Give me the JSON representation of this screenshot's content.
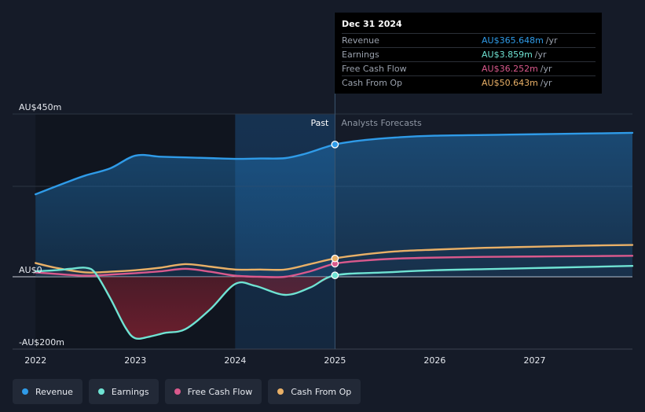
{
  "tooltip": {
    "date": "Dec 31 2024",
    "rows": [
      {
        "label": "Revenue",
        "value": "AU$365.648m",
        "unit": "/yr",
        "color": "#2f9be8"
      },
      {
        "label": "Earnings",
        "value": "AU$3.859m",
        "unit": "/yr",
        "color": "#6fe3d3"
      },
      {
        "label": "Free Cash Flow",
        "value": "AU$36.252m",
        "unit": "/yr",
        "color": "#d9598c"
      },
      {
        "label": "Cash From Op",
        "value": "AU$50.643m",
        "unit": "/yr",
        "color": "#e9b067"
      }
    ]
  },
  "legend": [
    {
      "label": "Revenue",
      "color": "#2f9be8"
    },
    {
      "label": "Earnings",
      "color": "#6fe3d3"
    },
    {
      "label": "Free Cash Flow",
      "color": "#d9598c"
    },
    {
      "label": "Cash From Op",
      "color": "#e9b067"
    }
  ],
  "chart_data": {
    "type": "line",
    "ytick_labels": [
      {
        "label": "AU$450m",
        "value": 450
      },
      {
        "label": "AU$0",
        "value": 0
      },
      {
        "label": "-AU$200m",
        "value": -200
      }
    ],
    "xtick_labels": [
      "2022",
      "2023",
      "2024",
      "2025",
      "2026",
      "2027"
    ],
    "ylim": [
      -200,
      450
    ],
    "xlim": [
      2021.77,
      2027.98
    ],
    "past_label": "Past",
    "forecast_label": "Analysts Forecasts",
    "split_x": 2025.0,
    "highlight_start_x": 2024.0,
    "hover_x": 2025.0,
    "series": [
      {
        "name": "Revenue",
        "color": "#2f9be8",
        "points": [
          [
            2022.0,
            228
          ],
          [
            2022.3,
            260
          ],
          [
            2022.5,
            280
          ],
          [
            2022.75,
            300
          ],
          [
            2023.0,
            335
          ],
          [
            2023.25,
            332
          ],
          [
            2023.5,
            330
          ],
          [
            2023.75,
            328
          ],
          [
            2024.0,
            326
          ],
          [
            2024.25,
            327
          ],
          [
            2024.5,
            328
          ],
          [
            2024.7,
            340
          ],
          [
            2025.0,
            365.648
          ],
          [
            2025.3,
            378
          ],
          [
            2025.6,
            385
          ],
          [
            2026.0,
            390
          ],
          [
            2026.5,
            392
          ],
          [
            2027.0,
            394
          ],
          [
            2027.5,
            396
          ],
          [
            2027.98,
            398
          ]
        ]
      },
      {
        "name": "Earnings",
        "color": "#6fe3d3",
        "points": [
          [
            2022.0,
            15
          ],
          [
            2022.2,
            18
          ],
          [
            2022.35,
            22
          ],
          [
            2022.5,
            25
          ],
          [
            2022.6,
            10
          ],
          [
            2022.75,
            -60
          ],
          [
            2022.9,
            -140
          ],
          [
            2023.0,
            -170
          ],
          [
            2023.15,
            -165
          ],
          [
            2023.3,
            -155
          ],
          [
            2023.5,
            -145
          ],
          [
            2023.75,
            -90
          ],
          [
            2024.0,
            -20
          ],
          [
            2024.2,
            -25
          ],
          [
            2024.5,
            -50
          ],
          [
            2024.75,
            -30
          ],
          [
            2025.0,
            3.859
          ],
          [
            2025.5,
            12
          ],
          [
            2026.0,
            18
          ],
          [
            2026.5,
            21
          ],
          [
            2027.0,
            24
          ],
          [
            2027.5,
            27
          ],
          [
            2027.98,
            30
          ]
        ]
      },
      {
        "name": "Free Cash Flow",
        "color": "#d9598c",
        "points": [
          [
            2022.0,
            12
          ],
          [
            2022.2,
            8
          ],
          [
            2022.5,
            3
          ],
          [
            2022.75,
            6
          ],
          [
            2023.0,
            10
          ],
          [
            2023.25,
            15
          ],
          [
            2023.5,
            22
          ],
          [
            2023.75,
            14
          ],
          [
            2024.0,
            3
          ],
          [
            2024.25,
            0
          ],
          [
            2024.5,
            0
          ],
          [
            2024.75,
            15
          ],
          [
            2025.0,
            36.252
          ],
          [
            2025.3,
            45
          ],
          [
            2025.6,
            50
          ],
          [
            2026.0,
            53
          ],
          [
            2026.5,
            55
          ],
          [
            2027.0,
            56
          ],
          [
            2027.5,
            57
          ],
          [
            2027.98,
            58
          ]
        ]
      },
      {
        "name": "Cash From Op",
        "color": "#e9b067",
        "points": [
          [
            2022.0,
            38
          ],
          [
            2022.2,
            25
          ],
          [
            2022.5,
            12
          ],
          [
            2022.75,
            14
          ],
          [
            2023.0,
            18
          ],
          [
            2023.25,
            25
          ],
          [
            2023.5,
            35
          ],
          [
            2023.75,
            28
          ],
          [
            2024.0,
            20
          ],
          [
            2024.25,
            20
          ],
          [
            2024.5,
            20
          ],
          [
            2024.75,
            35
          ],
          [
            2025.0,
            50.643
          ],
          [
            2025.3,
            62
          ],
          [
            2025.6,
            70
          ],
          [
            2026.0,
            75
          ],
          [
            2026.5,
            80
          ],
          [
            2027.0,
            83
          ],
          [
            2027.5,
            86
          ],
          [
            2027.98,
            88
          ]
        ]
      }
    ]
  }
}
